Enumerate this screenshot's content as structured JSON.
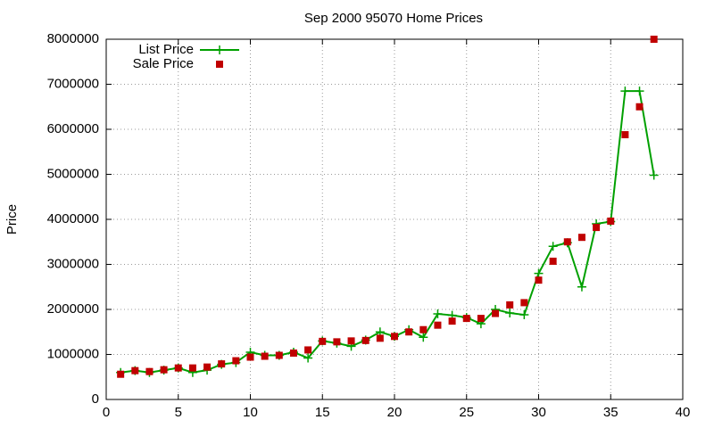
{
  "chart_data": {
    "type": "line",
    "title": "Sep 2000 95070 Home Prices",
    "y_label": "Price",
    "x": [
      1,
      2,
      3,
      4,
      5,
      6,
      7,
      8,
      9,
      10,
      11,
      12,
      13,
      14,
      15,
      16,
      17,
      18,
      19,
      20,
      21,
      22,
      23,
      24,
      25,
      26,
      27,
      28,
      29,
      30,
      31,
      32,
      33,
      34,
      35,
      36,
      37,
      38
    ],
    "series": [
      {
        "name": "List Price",
        "color": "#00a000",
        "style": "linespoints",
        "values": [
          600000,
          640000,
          600000,
          650000,
          700000,
          600000,
          650000,
          780000,
          820000,
          1050000,
          980000,
          980000,
          1050000,
          920000,
          1300000,
          1250000,
          1180000,
          1320000,
          1500000,
          1400000,
          1550000,
          1380000,
          1900000,
          1870000,
          1820000,
          1680000,
          2000000,
          1920000,
          1880000,
          2800000,
          3400000,
          3480000,
          2500000,
          3900000,
          3950000,
          6850000,
          6850000,
          4980000
        ]
      },
      {
        "name": "Sale Price",
        "color": "#c00000",
        "style": "points",
        "values": [
          560000,
          640000,
          620000,
          660000,
          700000,
          700000,
          720000,
          790000,
          860000,
          940000,
          960000,
          980000,
          1030000,
          1100000,
          1290000,
          1280000,
          1300000,
          1310000,
          1360000,
          1400000,
          1500000,
          1550000,
          1650000,
          1740000,
          1800000,
          1800000,
          1910000,
          2100000,
          2150000,
          2650000,
          3070000,
          3500000,
          3600000,
          3820000,
          3960000,
          5880000,
          6500000,
          8000000
        ]
      }
    ],
    "xlim": [
      0,
      40
    ],
    "xticks": [
      0,
      5,
      10,
      15,
      20,
      25,
      30,
      35,
      40
    ],
    "ylim": [
      0,
      8000000
    ],
    "yticks": [
      0,
      1000000,
      2000000,
      3000000,
      4000000,
      5000000,
      6000000,
      7000000,
      8000000
    ],
    "grid": true,
    "legend": "top-left"
  }
}
